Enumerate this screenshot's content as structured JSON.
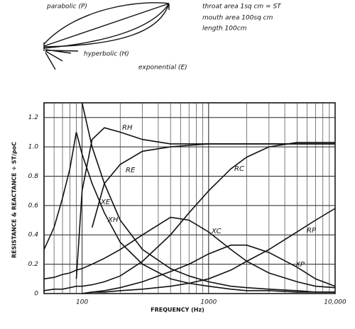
{
  "diagram": {
    "labels": [
      "parabolic (P)",
      "hyperbolic (H)",
      "exponential (E)"
    ],
    "notes": [
      "throat area 1sq cm = ST",
      "mouth area 100sq cm",
      "length 100cm"
    ]
  },
  "chart_data": {
    "type": "line",
    "y_label": "RESISTANCE & REACTANCE ÷ ST/ρoC",
    "x_label": "FREQUENCY (Hz)",
    "log_x": true,
    "grid": true,
    "x": [
      50,
      60,
      70,
      80,
      90,
      100,
      120,
      150,
      200,
      300,
      500,
      700,
      1000,
      1500,
      2000,
      3000,
      5000,
      7000,
      10000
    ],
    "xlim": [
      50,
      10000
    ],
    "xticks": [
      100,
      1000,
      {
        "value": 10000,
        "label": "10,000"
      }
    ],
    "xminorticks": [
      60,
      70,
      80,
      90,
      200,
      300,
      400,
      500,
      600,
      700,
      800,
      900,
      2000,
      3000,
      4000,
      5000,
      6000,
      7000,
      8000,
      9000
    ],
    "ylim": [
      0,
      1.3
    ],
    "yticks": [
      0,
      0.2,
      0.4,
      0.6,
      0.8,
      {
        "value": 1,
        "label": "1.0"
      },
      1.2
    ],
    "series": [
      {
        "name": "RH",
        "color": "#111",
        "values": [
          null,
          null,
          null,
          null,
          0.1,
          0.7,
          1.05,
          1.13,
          1.1,
          1.05,
          1.02,
          1.02,
          1.02,
          1.02,
          1.02,
          1.02,
          1.02,
          1.02,
          1.02
        ]
      },
      {
        "name": "RE",
        "color": "#111",
        "values": [
          null,
          null,
          null,
          null,
          null,
          null,
          0.45,
          0.75,
          0.88,
          0.97,
          1.0,
          1.01,
          1.02,
          1.02,
          1.02,
          1.02,
          1.02,
          1.02,
          1.02
        ]
      },
      {
        "name": "XE",
        "color": "#111",
        "values": [
          null,
          null,
          null,
          null,
          null,
          1.3,
          1.0,
          0.75,
          0.5,
          0.3,
          0.17,
          0.12,
          0.08,
          0.05,
          0.04,
          0.03,
          0.02,
          0.01,
          0.01
        ]
      },
      {
        "name": "XH",
        "color": "#111",
        "values": [
          0.3,
          0.45,
          0.65,
          0.85,
          1.1,
          0.95,
          0.75,
          0.55,
          0.35,
          0.2,
          0.1,
          0.07,
          0.05,
          0.03,
          0.02,
          0.02,
          0.01,
          0.01,
          0.01
        ]
      },
      {
        "name": "RC",
        "color": "#111",
        "values": [
          0.02,
          0.03,
          0.03,
          0.04,
          0.05,
          0.05,
          0.06,
          0.08,
          0.12,
          0.22,
          0.4,
          0.55,
          0.7,
          0.85,
          0.93,
          1.0,
          1.03,
          1.03,
          1.03
        ]
      },
      {
        "name": "XC",
        "color": "#111",
        "values": [
          0.1,
          0.11,
          0.13,
          0.14,
          0.16,
          0.17,
          0.2,
          0.24,
          0.3,
          0.4,
          0.52,
          0.5,
          0.42,
          0.3,
          0.22,
          0.14,
          0.08,
          0.05,
          0.04
        ]
      },
      {
        "name": "RP",
        "color": "#111",
        "values": [
          null,
          null,
          null,
          null,
          null,
          0,
          0.01,
          0.01,
          0.02,
          0.03,
          0.05,
          0.07,
          0.1,
          0.16,
          0.22,
          0.3,
          0.42,
          0.5,
          0.58
        ]
      },
      {
        "name": "XP",
        "color": "#111",
        "values": [
          null,
          null,
          null,
          null,
          null,
          0,
          0.01,
          0.02,
          0.04,
          0.08,
          0.15,
          0.2,
          0.27,
          0.33,
          0.33,
          0.28,
          0.18,
          0.1,
          0.05
        ]
      }
    ]
  }
}
